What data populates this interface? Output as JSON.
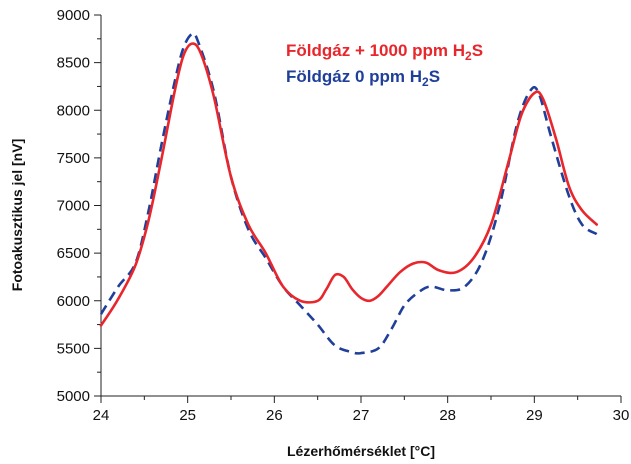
{
  "chart_data": {
    "type": "line",
    "xlabel": "Lézerhőmérséklet [°C]",
    "ylabel": "Fotoakusztikus jel [nV]",
    "xlim": [
      24,
      30
    ],
    "ylim": [
      5000,
      9000
    ],
    "xticks": [
      "24",
      "25",
      "26",
      "27",
      "28",
      "29",
      "30"
    ],
    "yticks": [
      "5000",
      "5500",
      "6000",
      "6500",
      "7000",
      "7500",
      "8000",
      "8500",
      "9000"
    ],
    "legend_position": "top-right",
    "legend": [
      {
        "prefix": "Földgáz + 1000 ppm H",
        "sub": "2",
        "suffix": "S",
        "color": "#e8262b"
      },
      {
        "prefix": "Földgáz 0 ppm H",
        "sub": "2",
        "suffix": "S",
        "color": "#1f3f9a"
      }
    ],
    "series": [
      {
        "name": "Földgáz + 1000 ppm H2S",
        "color": "#e8262b",
        "style": "solid",
        "x": [
          24.0,
          24.2,
          24.4,
          24.55,
          24.7,
          24.85,
          24.95,
          25.05,
          25.15,
          25.3,
          25.5,
          25.7,
          25.9,
          26.1,
          26.3,
          26.5,
          26.6,
          26.7,
          26.8,
          26.9,
          27.0,
          27.1,
          27.2,
          27.3,
          27.45,
          27.6,
          27.75,
          27.9,
          28.1,
          28.3,
          28.5,
          28.7,
          28.85,
          29.0,
          29.1,
          29.25,
          29.4,
          29.55,
          29.72
        ],
        "y": [
          5740,
          6020,
          6380,
          6850,
          7500,
          8200,
          8570,
          8700,
          8600,
          8150,
          7300,
          6800,
          6500,
          6150,
          6000,
          6000,
          6120,
          6270,
          6250,
          6120,
          6030,
          6000,
          6050,
          6150,
          6300,
          6390,
          6400,
          6320,
          6300,
          6450,
          6800,
          7450,
          7950,
          8180,
          8120,
          7700,
          7200,
          6950,
          6800
        ]
      },
      {
        "name": "Földgáz 0 ppm H2S",
        "color": "#1f3f9a",
        "style": "dashed",
        "x": [
          24.0,
          24.2,
          24.4,
          24.55,
          24.7,
          24.85,
          24.95,
          25.05,
          25.12,
          25.3,
          25.5,
          25.7,
          25.9,
          26.1,
          26.3,
          26.5,
          26.7,
          26.9,
          27.0,
          27.2,
          27.35,
          27.5,
          27.65,
          27.8,
          28.0,
          28.2,
          28.4,
          28.6,
          28.8,
          28.95,
          29.05,
          29.2,
          29.4,
          29.55,
          29.72
        ],
        "y": [
          5860,
          6150,
          6400,
          6950,
          7650,
          8300,
          8650,
          8800,
          8720,
          8200,
          7300,
          6750,
          6450,
          6150,
          5950,
          5750,
          5530,
          5460,
          5450,
          5500,
          5700,
          5950,
          6080,
          6150,
          6110,
          6150,
          6420,
          7000,
          7850,
          8200,
          8180,
          7700,
          7100,
          6800,
          6700
        ]
      }
    ]
  }
}
